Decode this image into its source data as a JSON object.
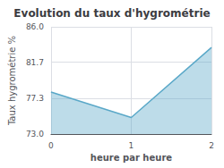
{
  "chart_data": {
    "type": "area",
    "title": "Evolution du taux d'hygrométrie",
    "xlabel": "heure par heure",
    "ylabel": "Taux hygrométrie %",
    "x": [
      0,
      1,
      2
    ],
    "values": [
      78.1,
      75.0,
      83.5
    ],
    "color": "#5aa8c8",
    "xlim": [
      0,
      2
    ],
    "xticks": [
      0,
      1,
      2
    ],
    "ylim": [
      73.0,
      86.0
    ],
    "yticks": [
      {
        "value": 73.0,
        "label": "73.0"
      },
      77.3,
      81.7,
      {
        "value": 86.0,
        "label": "86.0"
      }
    ],
    "grid": true
  }
}
